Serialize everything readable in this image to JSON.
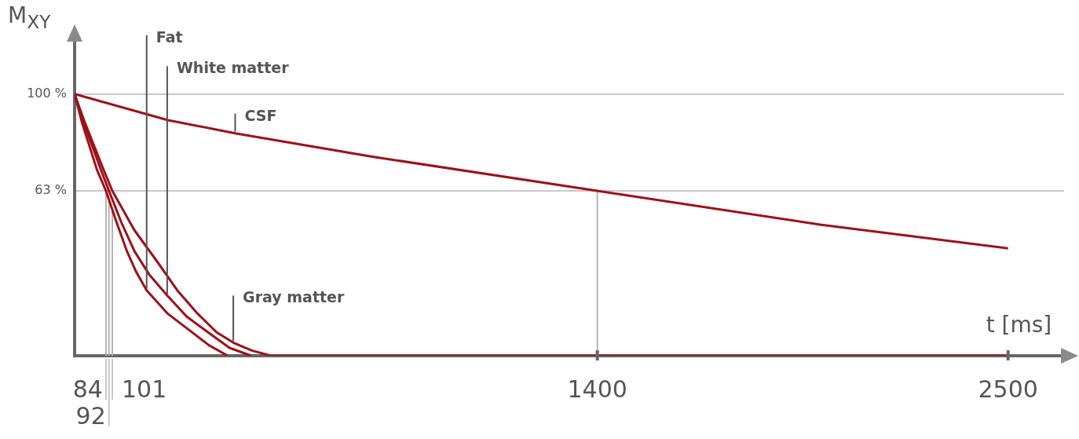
{
  "chart_data": {
    "type": "line",
    "ylabel": "M$_{XY}$",
    "xlabel": "t [ms]",
    "series": [
      {
        "name": "Fat",
        "color": "#9e1117",
        "x": [
          0,
          20,
          40,
          60,
          84,
          110,
          140,
          165,
          193,
          250,
          305,
          360,
          410
        ],
        "values": [
          100,
          89,
          80,
          71,
          63,
          52,
          40,
          32,
          25,
          16,
          10,
          4,
          0
        ]
      },
      {
        "name": "White matter",
        "color": "#9e1117",
        "x": [
          0,
          22,
          45,
          68,
          92,
          125,
          160,
          200,
          248,
          300,
          357,
          415,
          473
        ],
        "values": [
          100,
          90,
          81,
          72,
          63,
          51,
          40,
          31,
          23,
          15,
          9,
          3,
          0
        ]
      },
      {
        "name": "CSF",
        "color": "#9e1117",
        "x": [
          0,
          250,
          430,
          800,
          1400,
          2000,
          2500
        ],
        "values": [
          100,
          90,
          85,
          76,
          63,
          50,
          41
        ]
      },
      {
        "name": "Gray matter",
        "color": "#9e1117",
        "x": [
          0,
          25,
          50,
          75,
          101,
          160,
          221,
          275,
          330,
          380,
          425,
          475,
          526,
          2500
        ],
        "values": [
          100,
          90,
          81,
          72,
          63,
          48,
          36,
          25,
          16,
          9,
          5,
          2,
          0,
          0
        ]
      }
    ],
    "xlim": [
      0,
      2650
    ],
    "ylim": [
      0,
      120
    ],
    "xticks": [
      1400,
      2500
    ],
    "yticks": [
      {
        "value": 63,
        "label": "63 %"
      },
      {
        "value": 100,
        "label": "100 %"
      }
    ],
    "grid": "y",
    "marker": "none",
    "line_style": "solid",
    "ref_lines": [
      {
        "axis": "x",
        "value": 84,
        "label": "84",
        "color": "#b4b4b4"
      },
      {
        "axis": "x",
        "value": 92,
        "label": "92",
        "color": "#b4b4b4"
      },
      {
        "axis": "x",
        "value": 101,
        "label": "101",
        "color": "#b4b4b4"
      },
      {
        "axis": "x",
        "value": 1400,
        "color": "#b4b4b4"
      }
    ]
  }
}
